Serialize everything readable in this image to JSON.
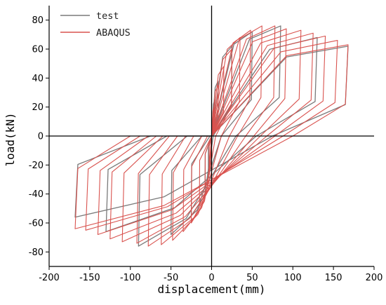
{
  "chart_data": {
    "type": "line",
    "title": "",
    "xlabel": "displacement(mm)",
    "ylabel": "load(kN)",
    "xlim": [
      -200,
      200
    ],
    "ylim": [
      -90,
      90
    ],
    "xticks": [
      -200,
      -150,
      -100,
      -50,
      0,
      50,
      100,
      150,
      200
    ],
    "yticks": [
      -80,
      -60,
      -40,
      -20,
      0,
      20,
      40,
      60,
      80
    ],
    "grid": false,
    "legend_position": "top-left",
    "series": [
      {
        "name": "test",
        "color": "#7a7a7a",
        "loops": [
          {
            "d_pos": 4,
            "p_pos": 25,
            "d_neg": -4,
            "p_neg": -25,
            "x0": 0
          },
          {
            "d_pos": 8,
            "p_pos": 38,
            "d_neg": -8,
            "p_neg": -35,
            "x0": 0
          },
          {
            "d_pos": 25,
            "p_pos": 62,
            "d_neg": -25,
            "p_neg": -55,
            "x0": 2
          },
          {
            "d_pos": 50,
            "p_pos": 72,
            "d_neg": -50,
            "p_neg": -68,
            "x0": 12
          },
          {
            "d_pos": 85,
            "p_pos": 76,
            "d_neg": -90,
            "p_neg": -76,
            "x0": 30
          },
          {
            "d_pos": 130,
            "p_pos": 68,
            "d_neg": -130,
            "p_neg": -66,
            "x0": 55
          },
          {
            "d_pos": 168,
            "p_pos": 62,
            "d_neg": -168,
            "p_neg": -56,
            "x0": 75
          }
        ]
      },
      {
        "name": "ABAQUS",
        "color": "#d9534f",
        "loops": [
          {
            "d_pos": 3,
            "p_pos": 20,
            "d_neg": -3,
            "p_neg": -20,
            "x0": 0
          },
          {
            "d_pos": 8,
            "p_pos": 35,
            "d_neg": -8,
            "p_neg": -35,
            "x0": 0
          },
          {
            "d_pos": 15,
            "p_pos": 48,
            "d_neg": -15,
            "p_neg": -48,
            "x0": 0
          },
          {
            "d_pos": 25,
            "p_pos": 60,
            "d_neg": -25,
            "p_neg": -60,
            "x0": 5
          },
          {
            "d_pos": 35,
            "p_pos": 68,
            "d_neg": -35,
            "p_neg": -66,
            "x0": 12
          },
          {
            "d_pos": 48,
            "p_pos": 73,
            "d_neg": -48,
            "p_neg": -72,
            "x0": 22
          },
          {
            "d_pos": 62,
            "p_pos": 76,
            "d_neg": -62,
            "p_neg": -75,
            "x0": 32
          },
          {
            "d_pos": 78,
            "p_pos": 76,
            "d_neg": -78,
            "p_neg": -76,
            "x0": 42
          },
          {
            "d_pos": 92,
            "p_pos": 74,
            "d_neg": -92,
            "p_neg": -74,
            "x0": 52
          },
          {
            "d_pos": 110,
            "p_pos": 73,
            "d_neg": -110,
            "p_neg": -73,
            "x0": 60
          },
          {
            "d_pos": 125,
            "p_pos": 71,
            "d_neg": -125,
            "p_neg": -71,
            "x0": 68
          },
          {
            "d_pos": 140,
            "p_pos": 69,
            "d_neg": -140,
            "p_neg": -68,
            "x0": 78
          },
          {
            "d_pos": 155,
            "p_pos": 66,
            "d_neg": -155,
            "p_neg": -65,
            "x0": 88
          },
          {
            "d_pos": 168,
            "p_pos": 63,
            "d_neg": -168,
            "p_neg": -64,
            "x0": 100
          }
        ]
      }
    ]
  }
}
